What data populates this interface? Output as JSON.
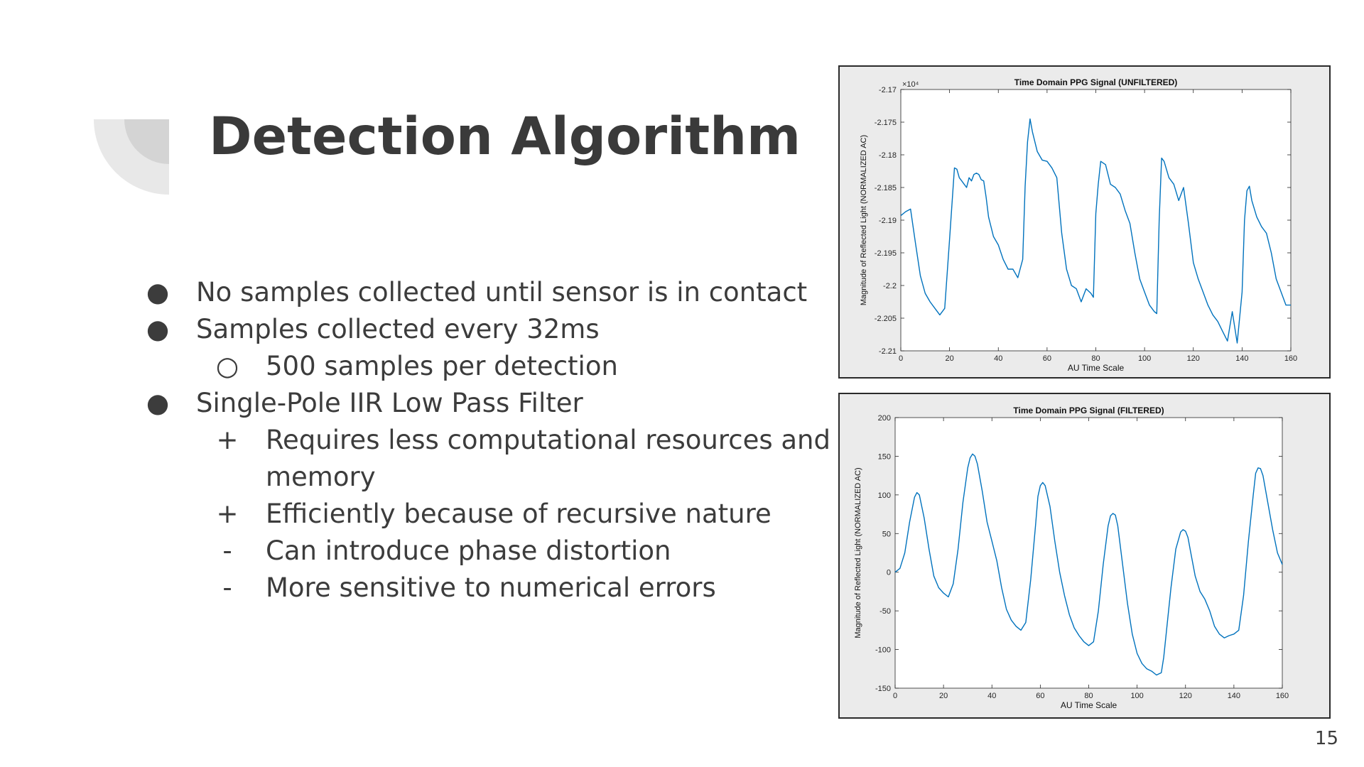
{
  "slide": {
    "title": "Detection Algorithm",
    "page_number": "15",
    "bullets": [
      {
        "marker": "●",
        "level": 0,
        "text": "No samples collected until sensor is in contact"
      },
      {
        "marker": "●",
        "level": 0,
        "text": "Samples collected every 32ms"
      },
      {
        "marker": "○",
        "level": 1,
        "text": "500 samples per detection"
      },
      {
        "marker": "●",
        "level": 0,
        "text": "Single-Pole IIR Low Pass Filter"
      },
      {
        "marker": "+",
        "level": 1,
        "text": "Requires less computational resources and"
      },
      {
        "marker": "",
        "level": 1,
        "text": "memory"
      },
      {
        "marker": "+",
        "level": 1,
        "text": "Efficiently because of recursive nature"
      },
      {
        "marker": "-",
        "level": 1,
        "text": "Can introduce phase distortion"
      },
      {
        "marker": "-",
        "level": 1,
        "text": "More sensitive to numerical errors"
      }
    ]
  },
  "colors": {
    "text": "#3c3c3c",
    "line": "#0072bd",
    "deco_light": "#e8e8e8",
    "deco_dark": "#d4d4d4"
  },
  "chart_data": [
    {
      "type": "line",
      "title": "Time Domain PPG Signal (UNFILTERED)",
      "xlabel": "AU Time Scale",
      "ylabel": "Magnitude of Reflected Light (NORMALIZED AC)",
      "exponent_label": "×10⁴",
      "xlim": [
        0,
        160
      ],
      "ylim": [
        -2.21,
        -2.17
      ],
      "xticks": [
        "0",
        "20",
        "40",
        "60",
        "80",
        "100",
        "120",
        "140",
        "160"
      ],
      "yticks": [
        "-2.17",
        "-2.175",
        "-2.18",
        "-2.185",
        "-2.19",
        "-2.195",
        "-2.2",
        "-2.205",
        "-2.21"
      ],
      "grid": false,
      "x": [
        0,
        2,
        4,
        6,
        8,
        10,
        12,
        14,
        16,
        18,
        20,
        22,
        23,
        24,
        25,
        26,
        27,
        28,
        29,
        30,
        31,
        32,
        33,
        34,
        35,
        36,
        38,
        40,
        42,
        44,
        46,
        48,
        50,
        51,
        52,
        53,
        54,
        56,
        58,
        60,
        62,
        64,
        66,
        68,
        70,
        72,
        74,
        76,
        78,
        79,
        80,
        81,
        82,
        84,
        86,
        88,
        90,
        92,
        94,
        96,
        98,
        100,
        102,
        104,
        105,
        106,
        107,
        108,
        110,
        112,
        114,
        116,
        118,
        120,
        122,
        124,
        126,
        128,
        130,
        132,
        134,
        136,
        138,
        140,
        141,
        142,
        143,
        144,
        146,
        148,
        150,
        152,
        154,
        156,
        158,
        160
      ],
      "y": [
        -2.1893,
        -2.1887,
        -2.1883,
        -2.1935,
        -2.1985,
        -2.2012,
        -2.2025,
        -2.2035,
        -2.2045,
        -2.2035,
        -2.193,
        -2.182,
        -2.1822,
        -2.1835,
        -2.184,
        -2.1845,
        -2.185,
        -2.1835,
        -2.184,
        -2.183,
        -2.1828,
        -2.183,
        -2.1838,
        -2.184,
        -2.1865,
        -2.1895,
        -2.1925,
        -2.1938,
        -2.196,
        -2.1975,
        -2.1975,
        -2.1988,
        -2.196,
        -2.1848,
        -2.178,
        -2.1745,
        -2.1765,
        -2.1795,
        -2.1808,
        -2.181,
        -2.182,
        -2.1835,
        -2.192,
        -2.1975,
        -2.2,
        -2.2005,
        -2.2025,
        -2.2005,
        -2.2012,
        -2.2018,
        -2.189,
        -2.1845,
        -2.181,
        -2.1815,
        -2.1845,
        -2.185,
        -2.186,
        -2.1885,
        -2.1905,
        -2.195,
        -2.199,
        -2.201,
        -2.203,
        -2.204,
        -2.2043,
        -2.19,
        -2.1805,
        -2.181,
        -2.1835,
        -2.1845,
        -2.187,
        -2.185,
        -2.1905,
        -2.1965,
        -2.199,
        -2.201,
        -2.203,
        -2.2045,
        -2.2055,
        -2.207,
        -2.2085,
        -2.204,
        -2.2088,
        -2.201,
        -2.19,
        -2.1855,
        -2.1848,
        -2.187,
        -2.1895,
        -2.191,
        -2.192,
        -2.195,
        -2.199,
        -2.201,
        -2.203,
        -2.203
      ]
    },
    {
      "type": "line",
      "title": "Time Domain PPG Signal (FILTERED)",
      "xlabel": "AU Time Scale",
      "ylabel": "Magnitude of Reflected Light (NORMALIZED AC)",
      "xlim": [
        0,
        160
      ],
      "ylim": [
        -150,
        200
      ],
      "xticks": [
        "0",
        "20",
        "40",
        "60",
        "80",
        "100",
        "120",
        "140",
        "160"
      ],
      "yticks": [
        "200",
        "150",
        "100",
        "50",
        "0",
        "-50",
        "-100",
        "-150"
      ],
      "grid": false,
      "x": [
        0,
        2,
        4,
        6,
        8,
        9,
        10,
        12,
        14,
        16,
        18,
        20,
        22,
        24,
        26,
        28,
        30,
        31,
        32,
        33,
        34,
        36,
        38,
        40,
        42,
        44,
        46,
        48,
        50,
        52,
        54,
        56,
        58,
        59,
        60,
        61,
        62,
        64,
        66,
        68,
        70,
        72,
        74,
        76,
        78,
        80,
        82,
        84,
        86,
        88,
        89,
        90,
        91,
        92,
        94,
        96,
        98,
        100,
        102,
        104,
        106,
        108,
        110,
        111,
        112,
        114,
        116,
        118,
        119,
        120,
        121,
        122,
        124,
        126,
        128,
        130,
        132,
        134,
        136,
        138,
        140,
        142,
        144,
        146,
        148,
        149,
        150,
        151,
        152,
        154,
        156,
        158,
        160
      ],
      "y": [
        0,
        5,
        25,
        65,
        97,
        103,
        100,
        70,
        30,
        -5,
        -20,
        -27,
        -32,
        -15,
        30,
        90,
        135,
        148,
        153,
        150,
        140,
        105,
        65,
        40,
        15,
        -20,
        -48,
        -62,
        -70,
        -75,
        -65,
        -10,
        60,
        98,
        112,
        116,
        112,
        85,
        40,
        0,
        -30,
        -55,
        -72,
        -82,
        -90,
        -95,
        -90,
        -50,
        10,
        60,
        73,
        76,
        74,
        60,
        10,
        -40,
        -80,
        -105,
        -118,
        -125,
        -128,
        -133,
        -130,
        -110,
        -80,
        -20,
        30,
        52,
        55,
        53,
        45,
        28,
        -5,
        -25,
        -35,
        -50,
        -70,
        -80,
        -85,
        -82,
        -80,
        -75,
        -30,
        40,
        100,
        128,
        135,
        134,
        125,
        90,
        55,
        25,
        10
      ]
    }
  ]
}
